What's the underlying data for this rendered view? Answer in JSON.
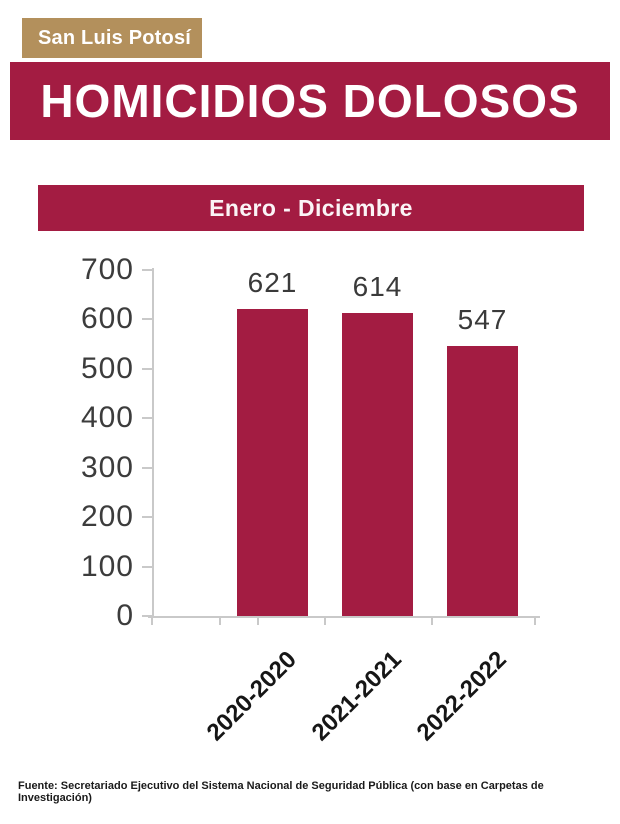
{
  "badge": {
    "label": "San Luis Potosí"
  },
  "title_banner": {
    "text": "HOMICIDIOS DOLOSOS"
  },
  "period_banner": {
    "text": "Enero - Diciembre"
  },
  "chart_data": {
    "type": "bar",
    "title": "Enero - Diciembre",
    "categories": [
      "2020-2020",
      "2021-2021",
      "2022-2022"
    ],
    "values": [
      621,
      614,
      547
    ],
    "value_labels": [
      "621",
      "614",
      "547"
    ],
    "xlabel": "",
    "ylabel": "",
    "ylim": [
      0,
      700
    ],
    "yticks": [
      0,
      100,
      200,
      300,
      400,
      500,
      600,
      700
    ],
    "grid": false,
    "legend": "none",
    "bar_color": "#A31C42",
    "axis_color": "#C9C9C9"
  },
  "theme": {
    "wine": "#A31C42",
    "gold": "#B3905C"
  },
  "footer": {
    "text": "Fuente: Secretariado Ejecutivo del Sistema Nacional de Seguridad Pública (con base en Carpetas de Investigación)"
  }
}
